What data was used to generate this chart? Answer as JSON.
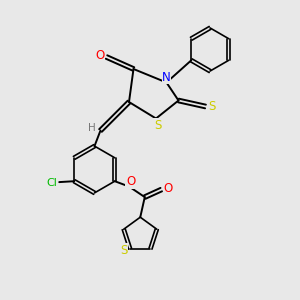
{
  "background_color": "#e8e8e8",
  "bond_color": "#000000",
  "atom_colors": {
    "O": "#ff0000",
    "N": "#0000ff",
    "S": "#cccc00",
    "Cl": "#00bb00",
    "H": "#777777",
    "C": "#000000"
  },
  "figsize": [
    3.0,
    3.0
  ],
  "dpi": 100
}
